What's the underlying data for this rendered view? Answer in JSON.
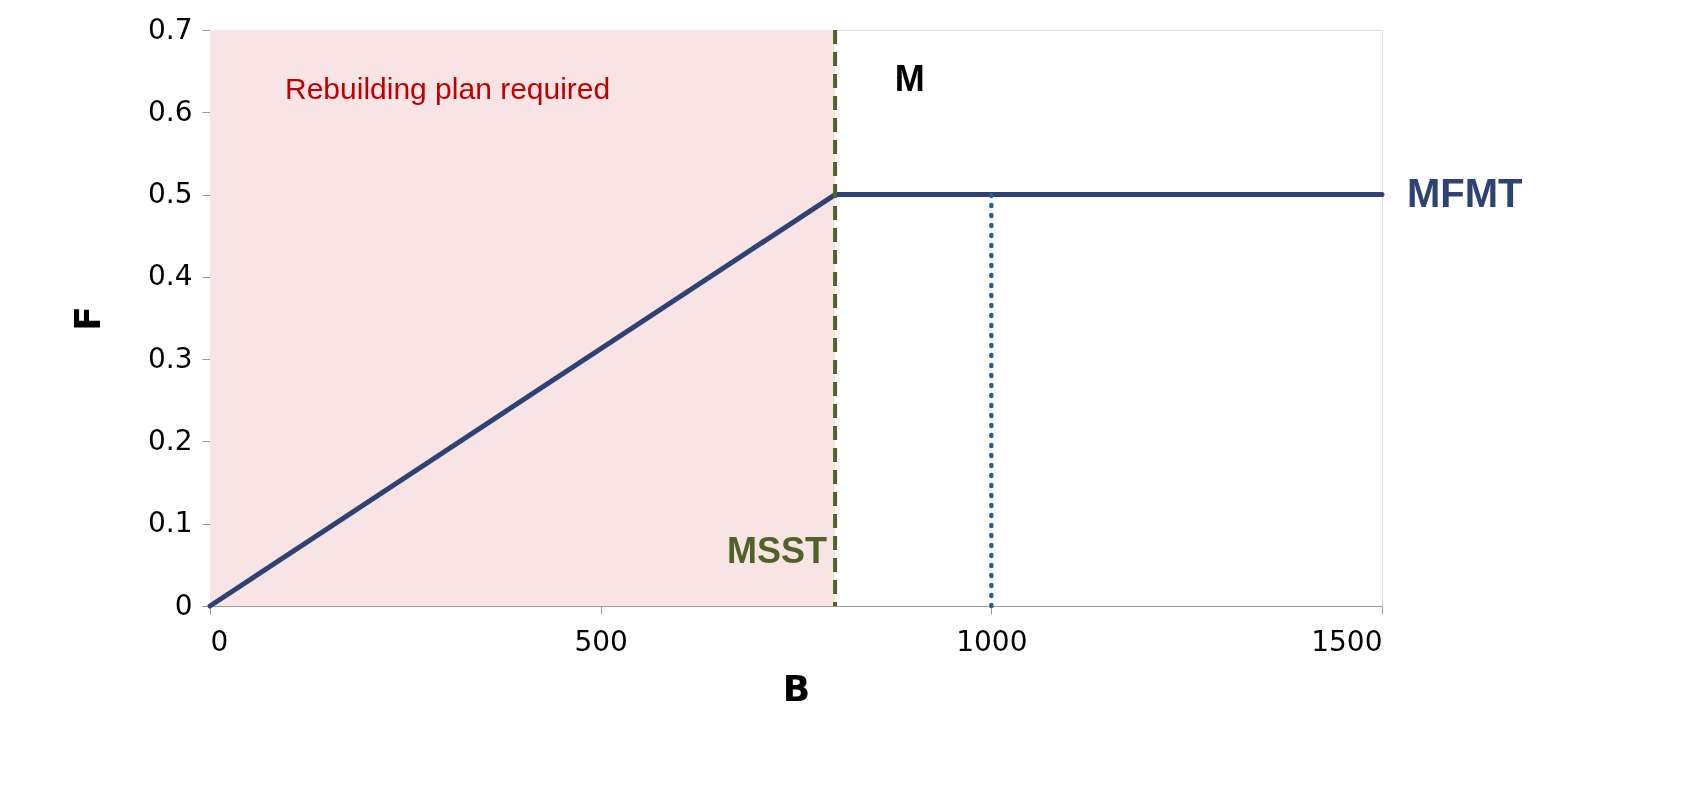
{
  "chart_data": {
    "type": "line",
    "xlabel": "B",
    "ylabel": "F",
    "xlim": [
      0,
      1500
    ],
    "xticks": [
      0,
      500,
      1000,
      1500
    ],
    "ylim": [
      0,
      0.7
    ],
    "yticks": [
      0,
      0.1,
      0.2,
      0.3,
      0.4,
      0.5,
      0.6,
      0.7
    ],
    "grid": false,
    "marker": "none",
    "series": [
      {
        "name": "MFMT",
        "color": "#2e4374",
        "x": [
          0,
          800,
          1500
        ],
        "values": [
          0,
          0.5,
          0.5
        ],
        "line_style": "solid"
      },
      {
        "color": "#2e5c8f",
        "x": [
          1000,
          1000
        ],
        "values": [
          0,
          0.5
        ],
        "line_style": "dotted"
      }
    ],
    "ref_lines": [
      {
        "axis": "x",
        "value": 800,
        "label": "MSST",
        "color": "#4f6228",
        "line_style": "dashed"
      }
    ],
    "bands": [
      {
        "axis": "x",
        "from": 0,
        "to": 800,
        "label": "Rebuilding plan required",
        "color": "#f8e4e5"
      }
    ],
    "annotations": [
      "M"
    ]
  }
}
